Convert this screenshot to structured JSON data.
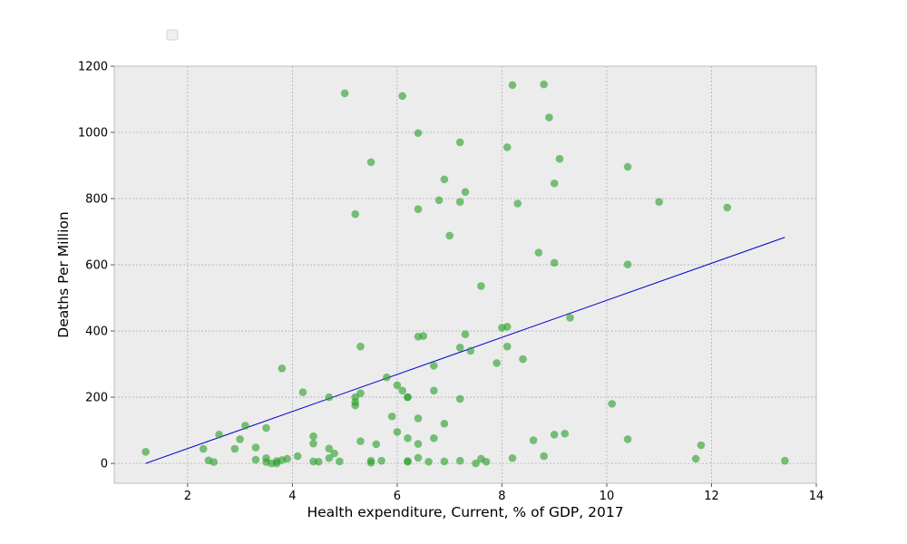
{
  "chart_data": {
    "type": "scatter",
    "title": "",
    "xlabel": "Health expenditure, Current, % of GDP, 2017",
    "ylabel": "Deaths Per Million",
    "xlim": [
      0.6,
      14.0
    ],
    "ylim": [
      -60,
      1200
    ],
    "xticks": [
      2,
      4,
      6,
      8,
      10,
      12,
      14
    ],
    "yticks": [
      0,
      200,
      400,
      600,
      800,
      1000,
      1200
    ],
    "xtick_labels": [
      "2",
      "4",
      "6",
      "8",
      "10",
      "12",
      "14"
    ],
    "ytick_labels": [
      "0",
      "200",
      "400",
      "600",
      "800",
      "1000",
      "1200"
    ],
    "grid": true,
    "legend": "top-left (empty)",
    "colors": {
      "points": "#2ca02c",
      "fit_line": "#0000cc",
      "plot_bg": "#ececec",
      "grid": "#b0b0b0"
    },
    "series": [
      {
        "type": "scatter",
        "points": [
          [
            1.2,
            35
          ],
          [
            2.3,
            44
          ],
          [
            2.4,
            9
          ],
          [
            2.5,
            4
          ],
          [
            2.6,
            87
          ],
          [
            2.9,
            44
          ],
          [
            3.0,
            73
          ],
          [
            3.1,
            114
          ],
          [
            3.3,
            48
          ],
          [
            3.3,
            11
          ],
          [
            3.5,
            107
          ],
          [
            3.5,
            16
          ],
          [
            3.5,
            4
          ],
          [
            3.6,
            0
          ],
          [
            3.7,
            0
          ],
          [
            3.7,
            7
          ],
          [
            3.8,
            10
          ],
          [
            3.8,
            287
          ],
          [
            3.9,
            14
          ],
          [
            4.1,
            22
          ],
          [
            4.2,
            215
          ],
          [
            4.4,
            82
          ],
          [
            4.4,
            60
          ],
          [
            4.4,
            6
          ],
          [
            4.5,
            5
          ],
          [
            4.7,
            45
          ],
          [
            4.7,
            200
          ],
          [
            4.7,
            16
          ],
          [
            4.8,
            30
          ],
          [
            4.9,
            6
          ],
          [
            5.0,
            1118
          ],
          [
            5.2,
            753
          ],
          [
            5.2,
            200
          ],
          [
            5.2,
            185
          ],
          [
            5.2,
            175
          ],
          [
            5.3,
            353
          ],
          [
            5.3,
            212
          ],
          [
            5.3,
            67
          ],
          [
            5.5,
            910
          ],
          [
            5.5,
            8
          ],
          [
            5.5,
            2
          ],
          [
            5.6,
            58
          ],
          [
            5.7,
            8
          ],
          [
            5.8,
            260
          ],
          [
            5.9,
            142
          ],
          [
            6.0,
            236
          ],
          [
            6.0,
            95
          ],
          [
            6.1,
            1110
          ],
          [
            6.1,
            220
          ],
          [
            6.2,
            200
          ],
          [
            6.2,
            200
          ],
          [
            6.2,
            76
          ],
          [
            6.2,
            7
          ],
          [
            6.2,
            5
          ],
          [
            6.4,
            998
          ],
          [
            6.4,
            768
          ],
          [
            6.4,
            383
          ],
          [
            6.4,
            136
          ],
          [
            6.4,
            59
          ],
          [
            6.4,
            17
          ],
          [
            6.5,
            385
          ],
          [
            6.6,
            5
          ],
          [
            6.7,
            295
          ],
          [
            6.7,
            220
          ],
          [
            6.7,
            76
          ],
          [
            6.8,
            795
          ],
          [
            6.9,
            858
          ],
          [
            6.9,
            120
          ],
          [
            6.9,
            6
          ],
          [
            7.0,
            688
          ],
          [
            7.2,
            970
          ],
          [
            7.2,
            790
          ],
          [
            7.2,
            350
          ],
          [
            7.2,
            195
          ],
          [
            7.2,
            8
          ],
          [
            7.3,
            820
          ],
          [
            7.3,
            390
          ],
          [
            7.4,
            340
          ],
          [
            7.5,
            0
          ],
          [
            7.6,
            536
          ],
          [
            7.6,
            14
          ],
          [
            7.7,
            5
          ],
          [
            7.9,
            303
          ],
          [
            8.0,
            410
          ],
          [
            8.1,
            955
          ],
          [
            8.1,
            413
          ],
          [
            8.1,
            353
          ],
          [
            8.2,
            1143
          ],
          [
            8.2,
            16
          ],
          [
            8.3,
            785
          ],
          [
            8.4,
            315
          ],
          [
            8.6,
            70
          ],
          [
            8.7,
            637
          ],
          [
            8.8,
            1145
          ],
          [
            8.8,
            22
          ],
          [
            8.9,
            1045
          ],
          [
            9.0,
            846
          ],
          [
            9.0,
            606
          ],
          [
            9.0,
            87
          ],
          [
            9.1,
            920
          ],
          [
            9.2,
            90
          ],
          [
            9.3,
            440
          ],
          [
            10.1,
            180
          ],
          [
            10.4,
            896
          ],
          [
            10.4,
            601
          ],
          [
            10.4,
            73
          ],
          [
            11.0,
            790
          ],
          [
            11.7,
            14
          ],
          [
            11.8,
            55
          ],
          [
            12.3,
            773
          ],
          [
            13.4,
            8
          ]
        ]
      },
      {
        "type": "line",
        "points": [
          [
            1.2,
            0
          ],
          [
            13.4,
            683
          ]
        ]
      }
    ]
  }
}
